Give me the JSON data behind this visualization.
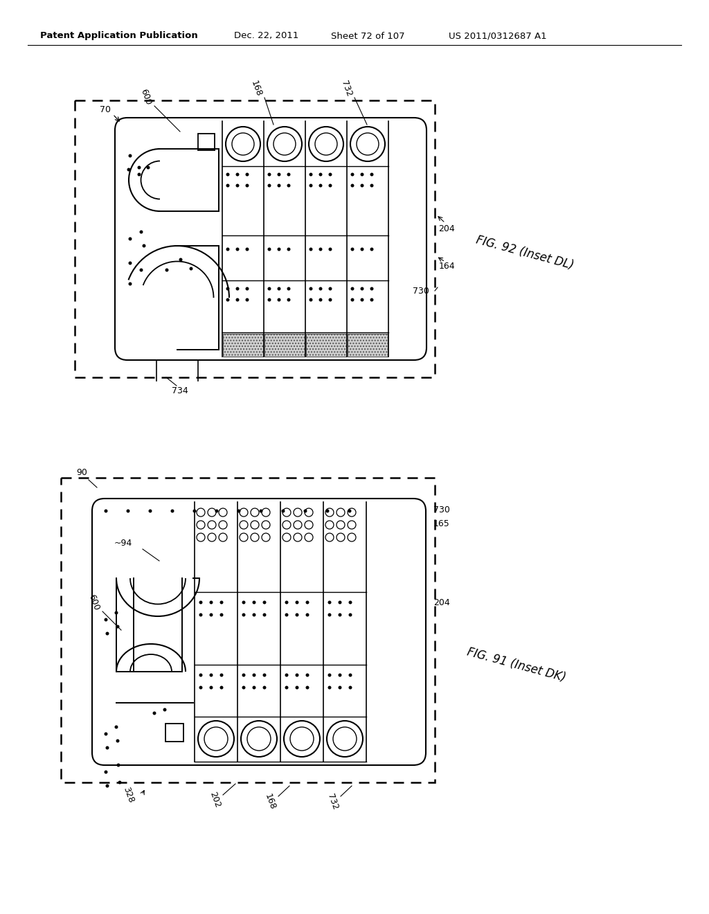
{
  "background_color": "#ffffff",
  "header_text": "Patent Application Publication",
  "header_date": "Dec. 22, 2011",
  "header_sheet": "Sheet 72 of 107",
  "header_patent": "US 2011/0312687 A1",
  "fig92_label": "FIG. 92 (Inset DL)",
  "fig91_label": "FIG. 91 (Inset DK)"
}
